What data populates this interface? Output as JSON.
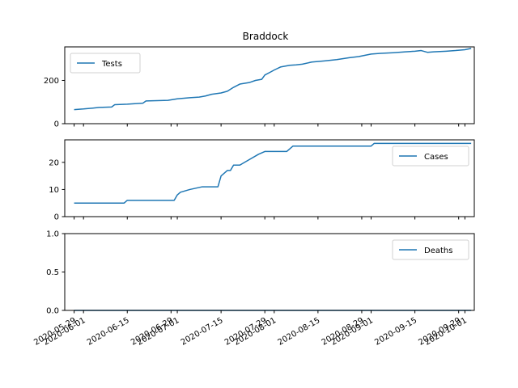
{
  "chart_data": {
    "title": "Braddock",
    "type": "line",
    "series_color": "#1f77b4",
    "x_tick_labels": [
      "2020-05-29",
      "2020-06-01",
      "2020-06-15",
      "2020-06-29",
      "2020-07-01",
      "2020-07-15",
      "2020-07-29",
      "2020-08-01",
      "2020-08-15",
      "2020-08-29",
      "2020-09-01",
      "2020-09-15",
      "2020-09-29",
      "2020-10-01"
    ],
    "x_range": [
      "2020-05-26",
      "2020-10-04"
    ],
    "subplots": [
      {
        "name": "Tests",
        "legend": "upper left",
        "ylim": [
          0,
          355
        ],
        "yticks": [
          0,
          200
        ],
        "points": [
          [
            "2020-05-29",
            65
          ],
          [
            "2020-06-01",
            68
          ],
          [
            "2020-06-04",
            72
          ],
          [
            "2020-06-06",
            75
          ],
          [
            "2020-06-10",
            77
          ],
          [
            "2020-06-11",
            88
          ],
          [
            "2020-06-15",
            90
          ],
          [
            "2020-06-20",
            95
          ],
          [
            "2020-06-21",
            105
          ],
          [
            "2020-06-28",
            108
          ],
          [
            "2020-07-01",
            115
          ],
          [
            "2020-07-05",
            120
          ],
          [
            "2020-07-08",
            123
          ],
          [
            "2020-07-10",
            128
          ],
          [
            "2020-07-12",
            136
          ],
          [
            "2020-07-15",
            142
          ],
          [
            "2020-07-17",
            150
          ],
          [
            "2020-07-19",
            168
          ],
          [
            "2020-07-21",
            183
          ],
          [
            "2020-07-24",
            190
          ],
          [
            "2020-07-26",
            200
          ],
          [
            "2020-07-28",
            205
          ],
          [
            "2020-07-29",
            225
          ],
          [
            "2020-07-31",
            240
          ],
          [
            "2020-08-01",
            248
          ],
          [
            "2020-08-03",
            262
          ],
          [
            "2020-08-06",
            270
          ],
          [
            "2020-08-08",
            272
          ],
          [
            "2020-08-10",
            275
          ],
          [
            "2020-08-13",
            285
          ],
          [
            "2020-08-17",
            290
          ],
          [
            "2020-08-21",
            296
          ],
          [
            "2020-08-25",
            305
          ],
          [
            "2020-08-28",
            310
          ],
          [
            "2020-09-01",
            322
          ],
          [
            "2020-09-04",
            325
          ],
          [
            "2020-09-08",
            328
          ],
          [
            "2020-09-12",
            332
          ],
          [
            "2020-09-15",
            335
          ],
          [
            "2020-09-17",
            338
          ],
          [
            "2020-09-19",
            330
          ],
          [
            "2020-09-21",
            332
          ],
          [
            "2020-09-25",
            335
          ],
          [
            "2020-09-28",
            338
          ],
          [
            "2020-10-01",
            342
          ],
          [
            "2020-10-03",
            348
          ]
        ]
      },
      {
        "name": "Cases",
        "legend": "upper right",
        "ylim": [
          0,
          28.3
        ],
        "yticks": [
          0,
          10,
          20
        ],
        "points": [
          [
            "2020-05-29",
            5
          ],
          [
            "2020-06-14",
            5
          ],
          [
            "2020-06-15",
            6
          ],
          [
            "2020-06-30",
            6
          ],
          [
            "2020-07-01",
            8
          ],
          [
            "2020-07-02",
            9
          ],
          [
            "2020-07-05",
            10
          ],
          [
            "2020-07-09",
            11
          ],
          [
            "2020-07-14",
            11
          ],
          [
            "2020-07-15",
            15
          ],
          [
            "2020-07-17",
            17
          ],
          [
            "2020-07-18",
            17
          ],
          [
            "2020-07-19",
            19
          ],
          [
            "2020-07-21",
            19
          ],
          [
            "2020-07-24",
            21
          ],
          [
            "2020-07-27",
            23
          ],
          [
            "2020-07-29",
            24
          ],
          [
            "2020-08-05",
            24
          ],
          [
            "2020-08-07",
            26
          ],
          [
            "2020-09-01",
            26
          ],
          [
            "2020-09-02",
            27
          ],
          [
            "2020-10-03",
            27
          ]
        ]
      },
      {
        "name": "Deaths",
        "legend": "upper right",
        "ylim": [
          0,
          1.0
        ],
        "yticks": [
          0.0,
          0.5,
          1.0
        ],
        "ytick_labels": [
          "0.0",
          "0.5",
          "1.0"
        ],
        "points": [
          [
            "2020-05-29",
            0
          ],
          [
            "2020-10-03",
            0
          ]
        ]
      }
    ]
  }
}
